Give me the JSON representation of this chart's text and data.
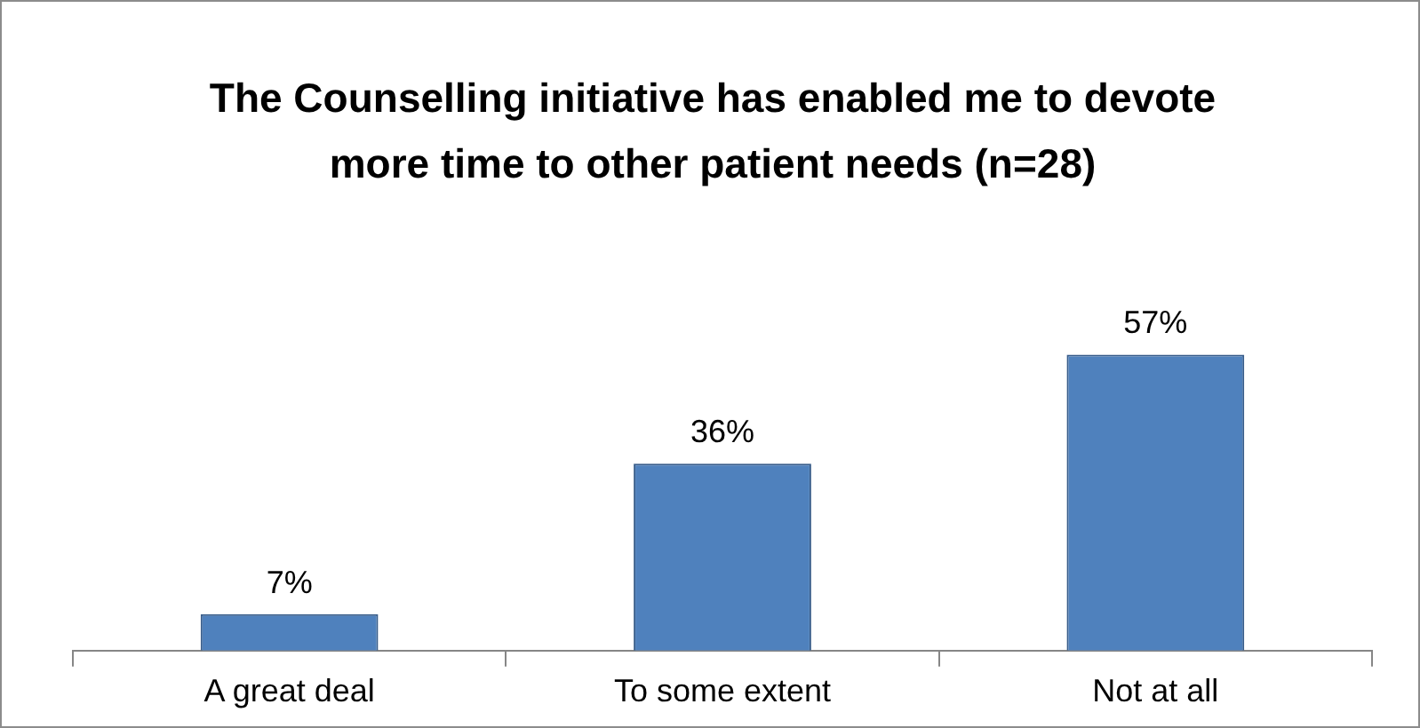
{
  "chart_data": {
    "type": "bar",
    "title": "The Counselling initiative has enabled me to devote more time to other patient needs (n=28)",
    "categories": [
      "A great deal",
      "To some extent",
      "Not at all"
    ],
    "values": [
      7,
      36,
      57
    ],
    "color": "#4f81bd",
    "value_labels": [
      "7%",
      "36%",
      "57%"
    ],
    "grid": false,
    "legend": false
  }
}
